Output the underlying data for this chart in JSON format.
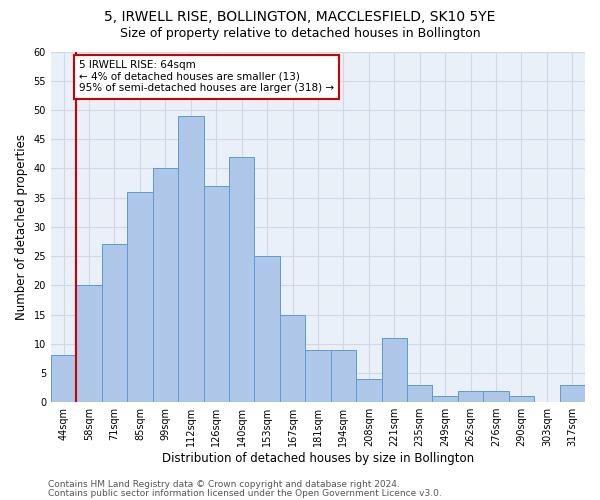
{
  "title_line1": "5, IRWELL RISE, BOLLINGTON, MACCLESFIELD, SK10 5YE",
  "title_line2": "Size of property relative to detached houses in Bollington",
  "xlabel": "Distribution of detached houses by size in Bollington",
  "ylabel": "Number of detached properties",
  "categories": [
    "44sqm",
    "58sqm",
    "71sqm",
    "85sqm",
    "99sqm",
    "112sqm",
    "126sqm",
    "140sqm",
    "153sqm",
    "167sqm",
    "181sqm",
    "194sqm",
    "208sqm",
    "221sqm",
    "235sqm",
    "249sqm",
    "262sqm",
    "276sqm",
    "290sqm",
    "303sqm",
    "317sqm"
  ],
  "values": [
    8,
    20,
    27,
    36,
    40,
    49,
    37,
    42,
    25,
    15,
    9,
    9,
    4,
    11,
    3,
    1,
    2,
    2,
    1,
    0,
    3
  ],
  "bar_color": "#aec6e8",
  "bar_edge_color": "#5b9bd5",
  "vline_color": "#cc0000",
  "annotation_text": "5 IRWELL RISE: 64sqm\n← 4% of detached houses are smaller (13)\n95% of semi-detached houses are larger (318) →",
  "annotation_box_color": "#ffffff",
  "annotation_box_edge": "#cc0000",
  "ylim": [
    0,
    60
  ],
  "yticks": [
    0,
    5,
    10,
    15,
    20,
    25,
    30,
    35,
    40,
    45,
    50,
    55,
    60
  ],
  "grid_color": "#d0d8e8",
  "background_color": "#eaf0f8",
  "footer_line1": "Contains HM Land Registry data © Crown copyright and database right 2024.",
  "footer_line2": "Contains public sector information licensed under the Open Government Licence v3.0.",
  "title_fontsize": 10,
  "subtitle_fontsize": 9,
  "tick_fontsize": 7,
  "xlabel_fontsize": 8.5,
  "ylabel_fontsize": 8.5,
  "footer_fontsize": 6.5,
  "annotation_fontsize": 7.5
}
